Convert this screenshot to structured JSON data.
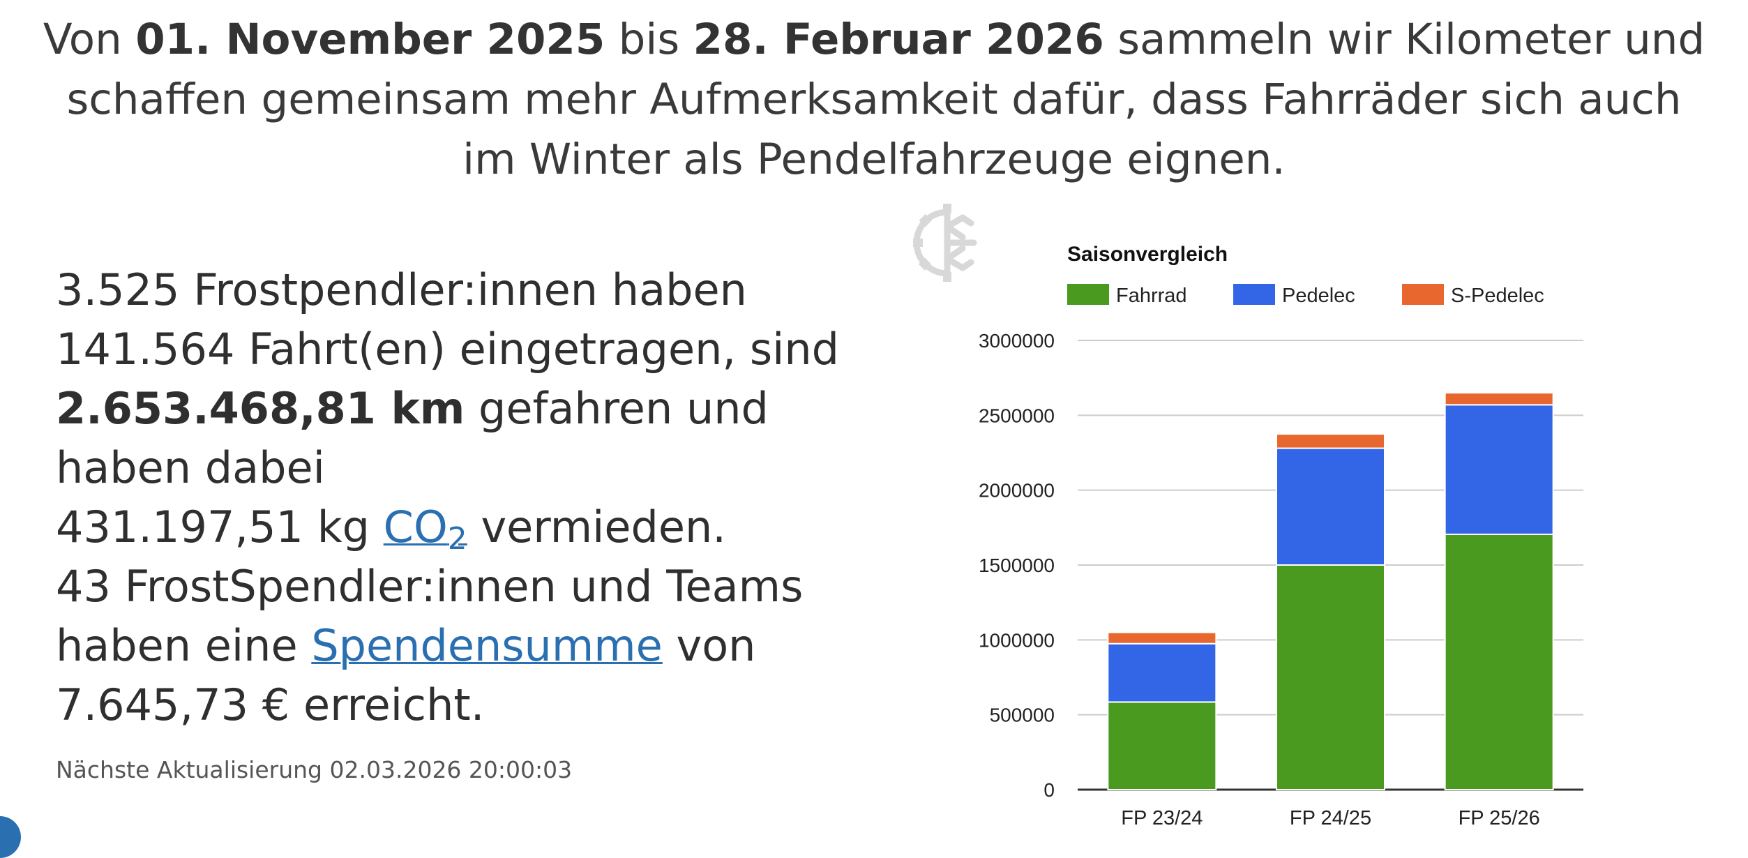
{
  "intro": {
    "prefix": "Von ",
    "start": "01. November 2025",
    "middle": " bis ",
    "end": "28. Februar 2026",
    "rest": " sammeln wir Kilometer und schaffen gemeinsam mehr Aufmerksamkeit dafür, dass Fahrräder sich auch im Winter als Pendelfahrzeuge eignen."
  },
  "stats": {
    "participants": "3.525",
    "participants_text": " Frostpendler:innen haben",
    "trips": "141.564",
    "trips_text": " Fahrt(en) eingetragen, sind",
    "km": "2.653.468,81 km",
    "km_text": " gefahren und haben dabei",
    "co2_value": "431.197,51 kg ",
    "co2_link": "CO",
    "co2_sub": "2",
    "co2_text": " vermieden.",
    "donors_text": "43 FrostSpendler:innen und Teams haben eine ",
    "donation_link": "Spendensumme",
    "donation_text": " von",
    "donation_value": "7.645,73 € erreicht."
  },
  "update": {
    "text": "Nächste Aktualisierung 02.03.2026 20:00:03"
  },
  "logo": {
    "icon": "snowflake-gear-icon",
    "color": "#d8d8d8"
  },
  "chart_data": {
    "type": "bar",
    "stacked": true,
    "title": "Saisonvergleich",
    "categories": [
      "FP 23/24",
      "FP 24/25",
      "FP 25/26"
    ],
    "series": [
      {
        "name": "Fahrrad",
        "color": "#4a9a1f",
        "values": [
          585000,
          1500000,
          1705000
        ]
      },
      {
        "name": "Pedelec",
        "color": "#3366e6",
        "values": [
          390000,
          780000,
          865000
        ]
      },
      {
        "name": "S-Pedelec",
        "color": "#e8672f",
        "values": [
          75000,
          95000,
          80000
        ]
      }
    ],
    "yticks": [
      "0",
      "500000",
      "1000000",
      "1500000",
      "2000000",
      "2500000",
      "3000000"
    ],
    "ylim": [
      0,
      3000000
    ],
    "grid": true,
    "legend": "top-left"
  }
}
